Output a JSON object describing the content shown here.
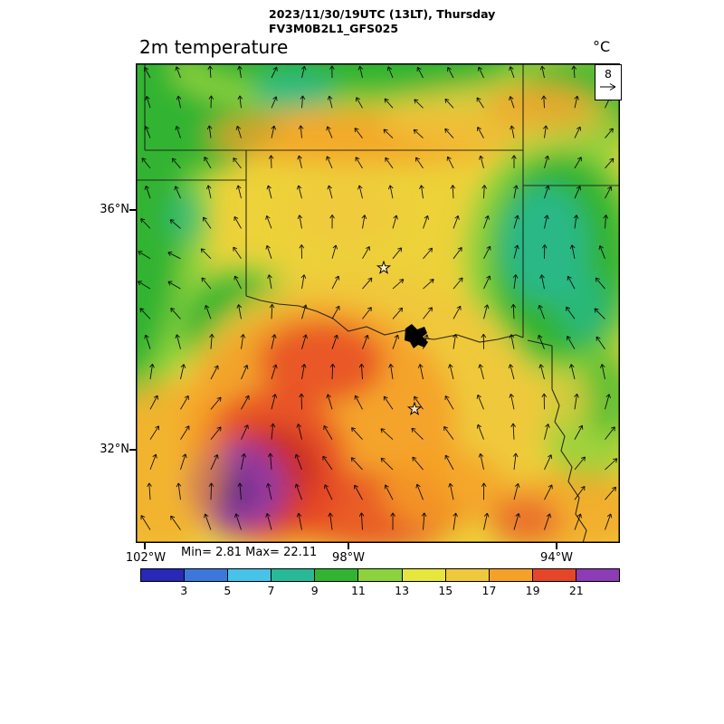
{
  "header": {
    "line1": "2023/11/30/19UTC (13LT), Thursday",
    "line2": "FV3M0B2L1_GFS025"
  },
  "plot": {
    "title": "2m temperature",
    "units_label": "°C",
    "ref_vector_label": "8",
    "stats": "Min= 2.81 Max= 22.11",
    "lat_labels": [
      "36°N",
      "32°N"
    ],
    "lon_labels": [
      "102°W",
      "98°W",
      "94°W"
    ]
  },
  "colorbar": {
    "ticks": [
      "3",
      "5",
      "7",
      "9",
      "11",
      "13",
      "15",
      "17",
      "19",
      "21"
    ],
    "colors": [
      "#2828b9",
      "#3c78dc",
      "#46c3e6",
      "#28b996",
      "#32b432",
      "#8cd23c",
      "#e6e63c",
      "#f0c83c",
      "#f5a028",
      "#e64628",
      "#8c3cb4"
    ]
  },
  "chart_data": {
    "type": "heatmap",
    "title": "2m temperature",
    "units": "°C",
    "valid_time": "2023/11/30/19UTC (13LT), Thursday",
    "model": "FV3M0B2L1_GFS025",
    "min": 2.81,
    "max": 22.11,
    "contour_levels": [
      3,
      5,
      7,
      9,
      11,
      13,
      15,
      17,
      19,
      21
    ],
    "palette": [
      "#2828b9",
      "#3c78dc",
      "#46c3e6",
      "#28b996",
      "#32b432",
      "#8cd23c",
      "#e6e63c",
      "#f0c83c",
      "#f5a028",
      "#e64628",
      "#8c3cb4"
    ],
    "wind_reference_vector": 8,
    "lat_ticks": [
      "36°N",
      "32°N"
    ],
    "lon_ticks": [
      "102°W",
      "98°W",
      "94°W"
    ],
    "legend_position": "bottom",
    "grid": false,
    "notes": "Filled contour 2m temperature over OK/TX region with wind vectors; warm max (purple >21C) in west Texas, cool teal patches (7-9C) in NE Oklahoma/SE Kansas; city star markers and Lake Texoma shown."
  }
}
